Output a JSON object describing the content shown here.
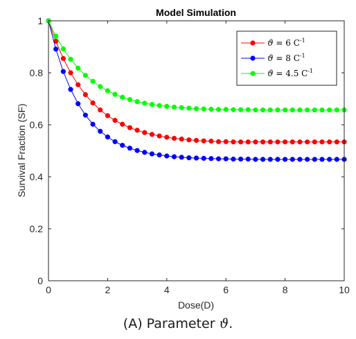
{
  "chart_data": {
    "type": "line",
    "title": "Model Simulation",
    "xlabel": "Dose(D)",
    "ylabel": "Survival Fraction (SF)",
    "xlim": [
      0,
      10
    ],
    "ylim": [
      0,
      1
    ],
    "xticks": [
      0,
      2,
      4,
      6,
      8,
      10
    ],
    "yticks": [
      0,
      0.2,
      0.4,
      0.6,
      0.8,
      1
    ],
    "grid": false,
    "legend_position": "top-right",
    "x": [
      0,
      0.25,
      0.5,
      0.75,
      1,
      1.25,
      1.5,
      1.75,
      2,
      2.25,
      2.5,
      2.75,
      3,
      3.25,
      3.5,
      3.75,
      4,
      4.25,
      4.5,
      4.75,
      5,
      5.25,
      5.5,
      5.75,
      6,
      6.25,
      6.5,
      6.75,
      7,
      7.25,
      7.5,
      7.75,
      8,
      8.25,
      8.5,
      8.75,
      9,
      9.25,
      9.5,
      9.75,
      10
    ],
    "series": [
      {
        "name": "ϑ = 6 C-1",
        "name_parts": {
          "symbol": "ϑ",
          "rest": " = 6 C",
          "sup": "-1"
        },
        "color": "#ff0000",
        "values": [
          1,
          0.921,
          0.855,
          0.8,
          0.754,
          0.716,
          0.684,
          0.657,
          0.635,
          0.617,
          0.602,
          0.589,
          0.579,
          0.57,
          0.563,
          0.557,
          0.552,
          0.548,
          0.545,
          0.542,
          0.54,
          0.538,
          0.537,
          0.535,
          0.535,
          0.534,
          0.534,
          0.534,
          0.534,
          0.534,
          0.534,
          0.534,
          0.534,
          0.534,
          0.534,
          0.534,
          0.534,
          0.534,
          0.534,
          0.534,
          0.534
        ]
      },
      {
        "name": "ϑ = 8 C-1",
        "name_parts": {
          "symbol": "ϑ",
          "rest": " = 8 C",
          "sup": "-1"
        },
        "color": "#0000ff",
        "values": [
          1,
          0.891,
          0.805,
          0.736,
          0.681,
          0.637,
          0.602,
          0.575,
          0.553,
          0.535,
          0.521,
          0.51,
          0.501,
          0.494,
          0.488,
          0.484,
          0.48,
          0.477,
          0.475,
          0.473,
          0.472,
          0.471,
          0.47,
          0.469,
          0.469,
          0.468,
          0.468,
          0.468,
          0.467,
          0.467,
          0.467,
          0.467,
          0.467,
          0.467,
          0.467,
          0.467,
          0.467,
          0.467,
          0.467,
          0.467,
          0.467
        ]
      },
      {
        "name": "ϑ = 4.5 C-1",
        "name_parts": {
          "symbol": "ϑ",
          "rest": " = 4.5 C",
          "sup": "-1"
        },
        "color": "#00ff00",
        "values": [
          1,
          0.941,
          0.892,
          0.852,
          0.818,
          0.79,
          0.767,
          0.747,
          0.731,
          0.717,
          0.706,
          0.697,
          0.689,
          0.683,
          0.678,
          0.674,
          0.671,
          0.668,
          0.666,
          0.664,
          0.662,
          0.661,
          0.66,
          0.659,
          0.659,
          0.658,
          0.658,
          0.658,
          0.657,
          0.657,
          0.657,
          0.657,
          0.657,
          0.657,
          0.657,
          0.657,
          0.657,
          0.657,
          0.657,
          0.657,
          0.657
        ]
      }
    ]
  },
  "caption": {
    "prefix": "(A)  Parameter ",
    "symbol": "ϑ",
    "suffix": "."
  }
}
